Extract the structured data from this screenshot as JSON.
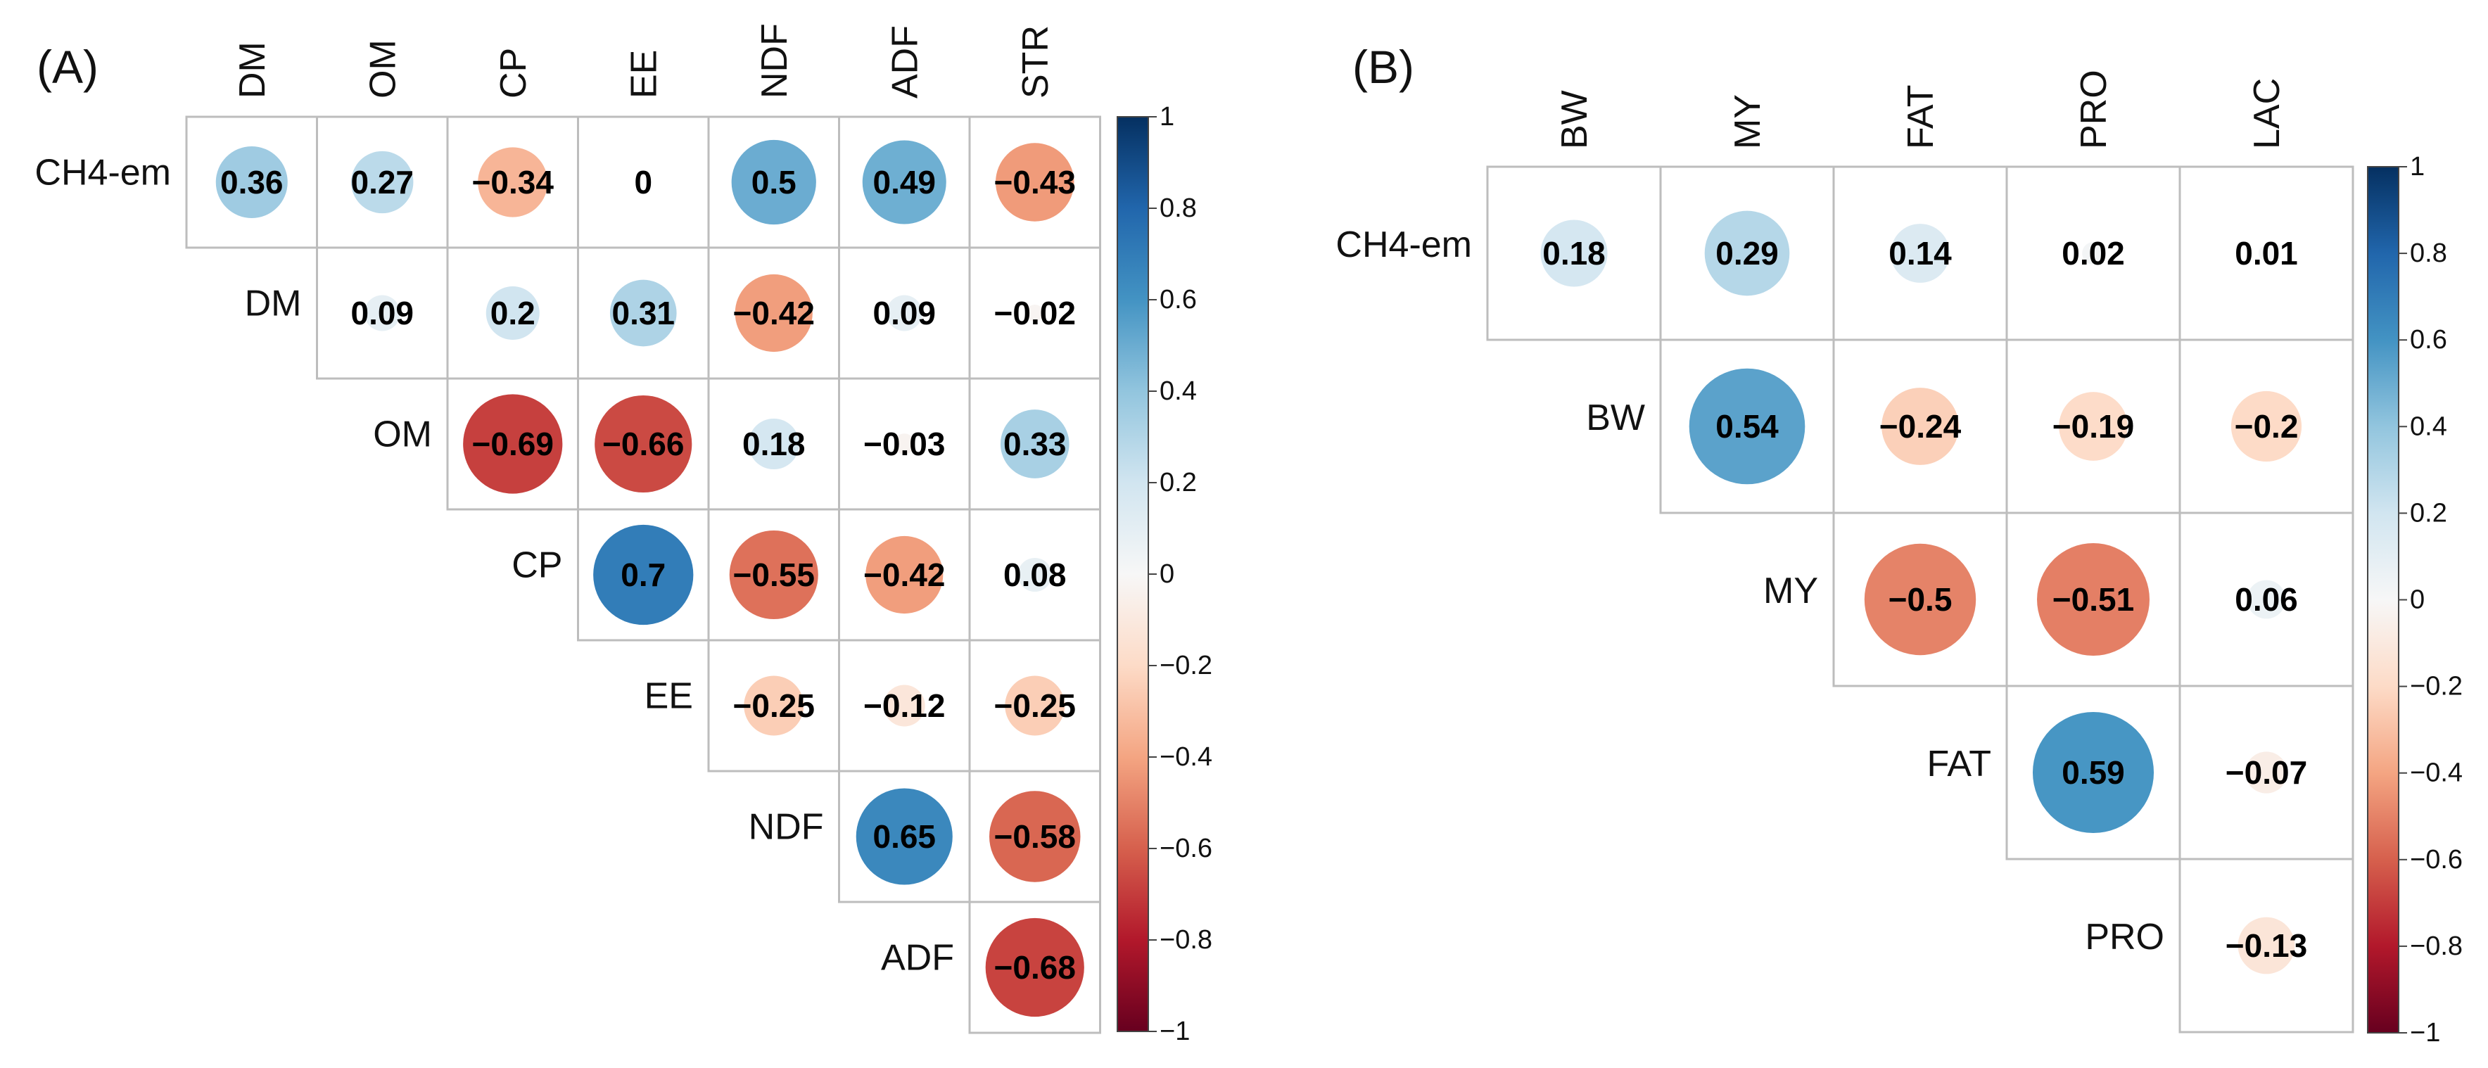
{
  "chart_data": [
    {
      "type": "heatmap",
      "panel_label": "(A)",
      "style": "correlation-circles-upper-triangle",
      "columns": [
        "DM",
        "OM",
        "CP",
        "EE",
        "NDF",
        "ADF",
        "STR"
      ],
      "rows": [
        "CH4-em",
        "DM",
        "OM",
        "CP",
        "EE",
        "NDF",
        "ADF"
      ],
      "values": [
        [
          0.36,
          0.27,
          -0.34,
          0,
          0.5,
          0.49,
          -0.43
        ],
        [
          null,
          0.09,
          0.2,
          0.31,
          -0.42,
          0.09,
          -0.02
        ],
        [
          null,
          null,
          -0.69,
          -0.66,
          0.18,
          -0.03,
          0.33
        ],
        [
          null,
          null,
          null,
          0.7,
          -0.55,
          -0.42,
          0.08
        ],
        [
          null,
          null,
          null,
          null,
          -0.25,
          -0.12,
          -0.25
        ],
        [
          null,
          null,
          null,
          null,
          null,
          0.65,
          -0.58
        ],
        [
          null,
          null,
          null,
          null,
          null,
          null,
          -0.68
        ]
      ],
      "labels": [
        [
          "0.36",
          "0.27",
          "−0.34",
          "0",
          "0.5",
          "0.49",
          "−0.43"
        ],
        [
          null,
          "0.09",
          "0.2",
          "0.31",
          "−0.42",
          "0.09",
          "−0.02"
        ],
        [
          null,
          null,
          "−0.69",
          "−0.66",
          "0.18",
          "−0.03",
          "0.33"
        ],
        [
          null,
          null,
          null,
          "0.7",
          "−0.55",
          "−0.42",
          "0.08"
        ],
        [
          null,
          null,
          null,
          null,
          "−0.25",
          "−0.12",
          "−0.25"
        ],
        [
          null,
          null,
          null,
          null,
          null,
          "0.65",
          "−0.58"
        ],
        [
          null,
          null,
          null,
          null,
          null,
          null,
          "−0.68"
        ]
      ],
      "colorbar": {
        "range": [
          -1,
          1
        ],
        "ticks": [
          1,
          0.8,
          0.6,
          0.4,
          0.2,
          0,
          -0.2,
          -0.4,
          -0.6,
          -0.8,
          -1
        ],
        "tick_labels": [
          "1",
          "0.8",
          "0.6",
          "0.4",
          "0.2",
          "0",
          "−0.2",
          "−0.4",
          "−0.6",
          "−0.8",
          "−1"
        ]
      }
    },
    {
      "type": "heatmap",
      "panel_label": "(B)",
      "style": "correlation-circles-upper-triangle",
      "columns": [
        "BW",
        "MY",
        "FAT",
        "PRO",
        "LAC"
      ],
      "rows": [
        "CH4-em",
        "BW",
        "MY",
        "FAT",
        "PRO"
      ],
      "values": [
        [
          0.18,
          0.29,
          0.14,
          0.02,
          0.01
        ],
        [
          null,
          0.54,
          -0.24,
          -0.19,
          -0.2
        ],
        [
          null,
          null,
          -0.5,
          -0.51,
          0.06
        ],
        [
          null,
          null,
          null,
          0.59,
          -0.07
        ],
        [
          null,
          null,
          null,
          null,
          -0.13
        ]
      ],
      "labels": [
        [
          "0.18",
          "0.29",
          "0.14",
          "0.02",
          "0.01"
        ],
        [
          null,
          "0.54",
          "−0.24",
          "−0.19",
          "−0.2"
        ],
        [
          null,
          null,
          "−0.5",
          "−0.51",
          "0.06"
        ],
        [
          null,
          null,
          null,
          "0.59",
          "−0.07"
        ],
        [
          null,
          null,
          null,
          null,
          "−0.13"
        ]
      ],
      "colorbar": {
        "range": [
          -1,
          1
        ],
        "ticks": [
          1,
          0.8,
          0.6,
          0.4,
          0.2,
          0,
          -0.2,
          -0.4,
          -0.6,
          -0.8,
          -1
        ],
        "tick_labels": [
          "1",
          "0.8",
          "0.6",
          "0.4",
          "0.2",
          "0",
          "−0.2",
          "−0.4",
          "−0.6",
          "−0.8",
          "−1"
        ]
      }
    }
  ],
  "colors": {
    "positive_dark": "#053061",
    "positive_mid": "#4393C3",
    "neutral": "#F7F7F7",
    "negative_mid": "#D6604D",
    "negative_dark": "#67001F",
    "grid": "#BDBDBD"
  }
}
